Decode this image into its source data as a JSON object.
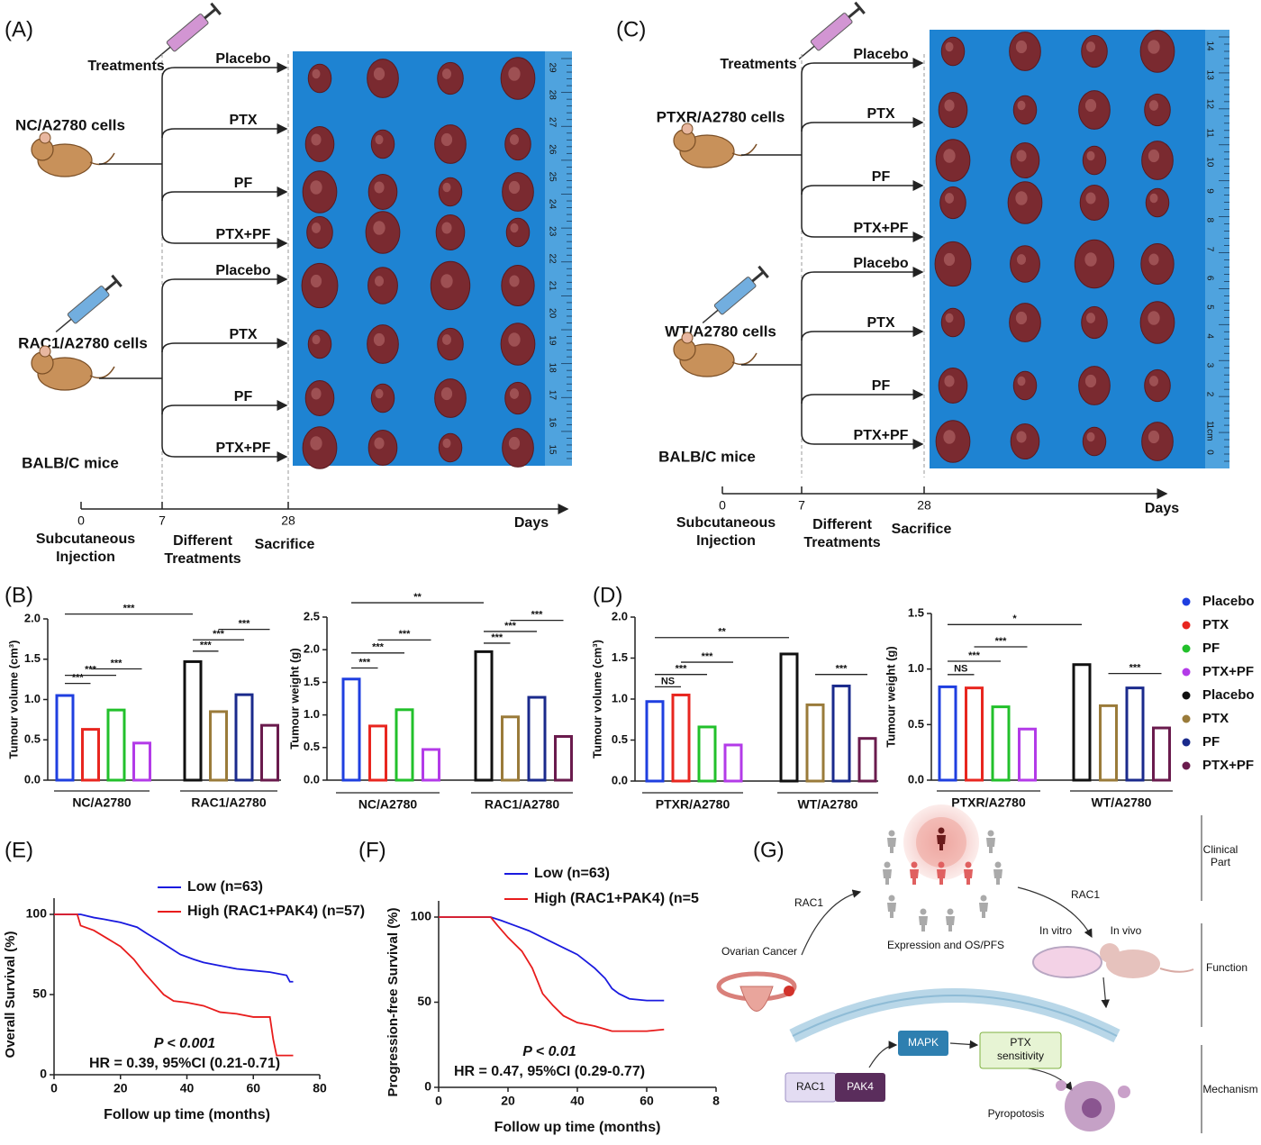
{
  "panels": {
    "a": "(A)",
    "b": "(B)",
    "c": "(C)",
    "d": "(D)",
    "e": "(E)",
    "f": "(F)",
    "g": "(G)"
  },
  "diagram_a": {
    "treatments_label": "Treatments",
    "groups": [
      {
        "cells": "NC/A2780 cells",
        "treatments": [
          "Placebo",
          "PTX",
          "PF",
          "PTX+PF"
        ]
      },
      {
        "cells": "RAC1/A2780 cells",
        "treatments": [
          "Placebo",
          "PTX",
          "PF",
          "PTX+PF"
        ]
      }
    ],
    "mice": "BALB/C mice",
    "ruler": [
      "29",
      "28",
      "27",
      "26",
      "25",
      "24",
      "23",
      "22",
      "21",
      "20",
      "19",
      "18",
      "17",
      "16",
      "15"
    ],
    "timeline": {
      "ticks": [
        "0",
        "7",
        "28"
      ],
      "unit": "Days",
      "stages": [
        [
          "Subcutaneous",
          "Injection"
        ],
        [
          "Different",
          "Treatments"
        ],
        [
          "Sacrifice"
        ]
      ]
    }
  },
  "diagram_c": {
    "treatments_label": "Treatments",
    "groups": [
      {
        "cells": "PTXR/A2780 cells",
        "treatments": [
          "Placebo",
          "PTX",
          "PF",
          "PTX+PF"
        ]
      },
      {
        "cells": "WT/A2780 cells",
        "treatments": [
          "Placebo",
          "PTX",
          "PF",
          "PTX+PF"
        ]
      }
    ],
    "mice": "BALB/C mice",
    "ruler": [
      "14",
      "13",
      "12",
      "11",
      "10",
      "9",
      "8",
      "7",
      "6",
      "5",
      "4",
      "3",
      "2",
      "1",
      "0"
    ],
    "ruler_unit": "1cm",
    "timeline": {
      "ticks": [
        "0",
        "7",
        "28"
      ],
      "unit": "Days",
      "stages": [
        [
          "Subcutaneous",
          "Injection"
        ],
        [
          "Different",
          "Treatments"
        ],
        [
          "Sacrifice"
        ]
      ]
    }
  },
  "diagram_g": {
    "parts": [
      [
        "Clinical",
        "Part"
      ],
      [
        "Function"
      ],
      [
        "Mechanism"
      ]
    ],
    "rac1_left": "RAC1",
    "rac1_right": "RAC1",
    "ovarian": "Ovarian Cancer",
    "expression": "Expression and OS/PFS",
    "in_vitro": "In vitro",
    "in_vivo": "In vivo",
    "mapk": "MAPK",
    "ptx": [
      "PTX",
      "sensitivity"
    ],
    "rac1_box": "RAC1",
    "pak4": "PAK4",
    "pyroptosis": "Pyropotosis"
  },
  "chart_data": [
    {
      "type": "bar",
      "ylabel": "Tumour volume (cm³)",
      "categories": [
        "NC/A2780",
        "RAC1/A2780"
      ],
      "series": [
        {
          "name": "Placebo",
          "color": "#1f3fe0",
          "values": [
            1.05,
            null
          ]
        },
        {
          "name": "PTX",
          "color": "#e8261f",
          "values": [
            0.63,
            null
          ]
        },
        {
          "name": "PF",
          "color": "#22c02b",
          "values": [
            0.87,
            null
          ]
        },
        {
          "name": "PTX+PF",
          "color": "#b33be8",
          "values": [
            0.46,
            null
          ]
        },
        {
          "name": "Placebo",
          "color": "#111111",
          "values": [
            null,
            1.47
          ]
        },
        {
          "name": "PTX",
          "color": "#9a7b3a",
          "values": [
            null,
            0.85
          ]
        },
        {
          "name": "PF",
          "color": "#1a2a8c",
          "values": [
            null,
            1.06
          ]
        },
        {
          "name": "PTX+PF",
          "color": "#6a1b4d",
          "values": [
            null,
            0.68
          ]
        }
      ],
      "ylim": [
        0,
        2
      ],
      "yticks": [
        {
          "value": 0,
          "label": "0.0"
        },
        0.5,
        {
          "value": 1,
          "label": "1.0"
        },
        1.5,
        {
          "value": 2,
          "label": "2.0"
        }
      ],
      "annotations": [
        "***",
        "***",
        "***",
        "***",
        "***",
        "***",
        "***"
      ]
    },
    {
      "type": "bar",
      "ylabel": "Tumour weight (g)",
      "categories": [
        "NC/A2780",
        "RAC1/A2780"
      ],
      "series": [
        {
          "name": "Placebo",
          "color": "#1f3fe0",
          "values": [
            1.55,
            null
          ]
        },
        {
          "name": "PTX",
          "color": "#e8261f",
          "values": [
            0.83,
            null
          ]
        },
        {
          "name": "PF",
          "color": "#22c02b",
          "values": [
            1.08,
            null
          ]
        },
        {
          "name": "PTX+PF",
          "color": "#b33be8",
          "values": [
            0.47,
            null
          ]
        },
        {
          "name": "Placebo",
          "color": "#111111",
          "values": [
            null,
            1.97
          ]
        },
        {
          "name": "PTX",
          "color": "#9a7b3a",
          "values": [
            null,
            0.97
          ]
        },
        {
          "name": "PF",
          "color": "#1a2a8c",
          "values": [
            null,
            1.27
          ]
        },
        {
          "name": "PTX+PF",
          "color": "#6a1b4d",
          "values": [
            null,
            0.67
          ]
        }
      ],
      "ylim": [
        0,
        2.5
      ],
      "yticks": [
        {
          "value": 0,
          "label": "0.0"
        },
        0.5,
        {
          "value": 1,
          "label": "1.0"
        },
        1.5,
        {
          "value": 2,
          "label": "2.0"
        },
        2.5
      ],
      "annotations": [
        "***",
        "***",
        "***",
        "***",
        "***",
        "***",
        "**"
      ]
    },
    {
      "type": "bar",
      "ylabel": "Tumour volume (cm³)",
      "categories": [
        "PTXR/A2780",
        "WT/A2780"
      ],
      "series": [
        {
          "name": "Placebo",
          "color": "#1f3fe0",
          "values": [
            0.97,
            null
          ]
        },
        {
          "name": "PTX",
          "color": "#e8261f",
          "values": [
            1.05,
            null
          ]
        },
        {
          "name": "PF",
          "color": "#22c02b",
          "values": [
            0.66,
            null
          ]
        },
        {
          "name": "PTX+PF",
          "color": "#b33be8",
          "values": [
            0.44,
            null
          ]
        },
        {
          "name": "Placebo",
          "color": "#111111",
          "values": [
            null,
            1.55
          ]
        },
        {
          "name": "PTX",
          "color": "#9a7b3a",
          "values": [
            null,
            0.93
          ]
        },
        {
          "name": "PF",
          "color": "#1a2a8c",
          "values": [
            null,
            1.16
          ]
        },
        {
          "name": "PTX+PF",
          "color": "#6a1b4d",
          "values": [
            null,
            0.52
          ]
        }
      ],
      "ylim": [
        0,
        2
      ],
      "yticks": [
        {
          "value": 0,
          "label": "0.0"
        },
        0.5,
        {
          "value": 1,
          "label": "1.0"
        },
        1.5,
        {
          "value": 2,
          "label": "2.0"
        }
      ],
      "annotations": [
        "NS",
        "***",
        "***",
        "**",
        "***"
      ]
    },
    {
      "type": "bar",
      "ylabel": "Tumour weight (g)",
      "categories": [
        "PTXR/A2780",
        "WT/A2780"
      ],
      "series": [
        {
          "name": "Placebo",
          "color": "#1f3fe0",
          "values": [
            0.84,
            null
          ]
        },
        {
          "name": "PTX",
          "color": "#e8261f",
          "values": [
            0.83,
            null
          ]
        },
        {
          "name": "PF",
          "color": "#22c02b",
          "values": [
            0.66,
            null
          ]
        },
        {
          "name": "PTX+PF",
          "color": "#b33be8",
          "values": [
            0.46,
            null
          ]
        },
        {
          "name": "Placebo",
          "color": "#111111",
          "values": [
            null,
            1.04
          ]
        },
        {
          "name": "PTX",
          "color": "#9a7b3a",
          "values": [
            null,
            0.67
          ]
        },
        {
          "name": "PF",
          "color": "#1a2a8c",
          "values": [
            null,
            0.83
          ]
        },
        {
          "name": "PTX+PF",
          "color": "#6a1b4d",
          "values": [
            null,
            0.47
          ]
        }
      ],
      "ylim": [
        0,
        1.5
      ],
      "yticks": [
        {
          "value": 0,
          "label": "0.0"
        },
        0.5,
        {
          "value": 1,
          "label": "1.0"
        },
        1.5
      ],
      "annotations": [
        "NS",
        "***",
        "***",
        "*",
        "***"
      ]
    },
    {
      "type": "line",
      "xlabel": "Follow up time (months)",
      "ylabel": "Overall Survival (%)",
      "series": [
        {
          "name": "Low (n=63)",
          "color": "#1a1adf",
          "x": [
            0,
            8,
            12,
            15,
            20,
            25,
            28,
            32,
            35,
            38,
            42,
            45,
            50,
            55,
            60,
            65,
            70,
            71,
            72
          ],
          "values": [
            100,
            100,
            98,
            97,
            95,
            92,
            88,
            83,
            79,
            75,
            72,
            70,
            68,
            66,
            65,
            64,
            62,
            58,
            58
          ]
        },
        {
          "name": "High (RAC1+PAK4) (n=57)",
          "color": "#e81c1c",
          "x": [
            0,
            7,
            8,
            12,
            16,
            20,
            24,
            27,
            30,
            33,
            36,
            40,
            45,
            50,
            55,
            60,
            65,
            66,
            67,
            72
          ],
          "values": [
            100,
            100,
            93,
            90,
            85,
            80,
            72,
            64,
            57,
            50,
            46,
            45,
            43,
            39,
            38,
            36,
            36,
            22,
            12,
            12
          ]
        }
      ],
      "xlim": [
        0,
        80
      ],
      "xticks": [
        0,
        20,
        40,
        60,
        80
      ],
      "ylim": [
        0,
        100
      ],
      "yticks": [
        0,
        50,
        100
      ],
      "annotations": [
        "P < 0.001",
        "HR = 0.39, 95%CI (0.21-0.71)"
      ]
    },
    {
      "type": "line",
      "xlabel": "Follow up time (months)",
      "ylabel": "Progression-free Survival (%)",
      "series": [
        {
          "name": "Low (n=63)",
          "color": "#1a1adf",
          "x": [
            0,
            15,
            18,
            22,
            26,
            30,
            35,
            40,
            45,
            48,
            50,
            52,
            55,
            60,
            65
          ],
          "values": [
            100,
            100,
            98,
            95,
            92,
            88,
            83,
            78,
            70,
            64,
            58,
            55,
            52,
            51,
            51
          ]
        },
        {
          "name": "High (RAC1+PAK4) (n=5",
          "color": "#e81c1c",
          "x": [
            0,
            15,
            17,
            20,
            24,
            27,
            30,
            33,
            36,
            40,
            45,
            50,
            55,
            60,
            65
          ],
          "values": [
            100,
            100,
            95,
            88,
            80,
            70,
            55,
            48,
            42,
            38,
            36,
            33,
            33,
            33,
            34
          ]
        }
      ],
      "xlim": [
        0,
        80
      ],
      "xticks": [
        0,
        20,
        40,
        60,
        {
          "value": 80,
          "label": "8"
        }
      ],
      "ylim": [
        0,
        100
      ],
      "yticks": [
        0,
        50,
        100
      ],
      "annotations": [
        "P < 0.01",
        "HR = 0.47, 95%CI (0.29-0.77)"
      ]
    }
  ]
}
